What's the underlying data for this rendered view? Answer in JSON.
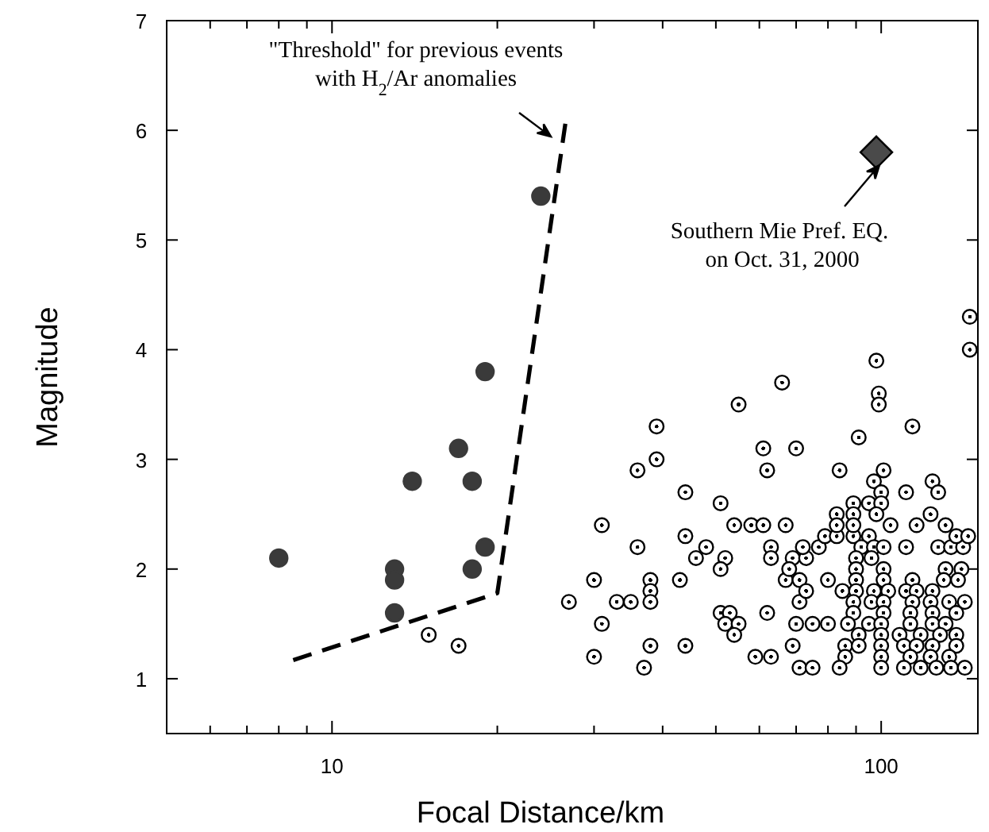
{
  "chart_data": {
    "type": "scatter",
    "xlabel": "Focal Distance/km",
    "ylabel": "Magnitude",
    "log": "x",
    "xlim": [
      5,
      150
    ],
    "ylim": [
      0.5,
      7
    ],
    "xticks": [
      {
        "value": 5,
        "label": null
      },
      {
        "value": 6,
        "label": null
      },
      {
        "value": 7,
        "label": null
      },
      {
        "value": 8,
        "label": null
      },
      {
        "value": 9,
        "label": null
      },
      10,
      {
        "value": 20,
        "label": null
      },
      {
        "value": 30,
        "label": null
      },
      {
        "value": 40,
        "label": null
      },
      {
        "value": 50,
        "label": null
      },
      {
        "value": 60,
        "label": null
      },
      {
        "value": 70,
        "label": null
      },
      {
        "value": 80,
        "label": null
      },
      {
        "value": 90,
        "label": null
      },
      100
    ],
    "yticks": [
      1,
      2,
      3,
      4,
      5,
      6,
      7
    ],
    "annotations": [
      "\"Threshold\" for previous events\nwith H$_{2}$/Ar anomalies",
      "Southern Mie Pref. EQ.\n on Oct. 31, 2000"
    ],
    "series": [
      {
        "type": "scatter",
        "marker": "circle",
        "color": "#000000",
        "x": [
          98,
          66,
          55,
          99,
          99,
          39,
          114,
          145,
          145,
          39,
          36,
          61,
          70,
          62,
          91,
          84,
          101,
          44,
          51,
          97,
          100,
          111,
          124,
          127,
          89,
          95,
          100,
          31,
          44,
          36,
          54,
          58,
          61,
          67,
          48,
          46,
          52,
          51,
          63,
          63,
          30,
          38,
          38,
          38,
          43,
          27,
          33,
          35,
          31,
          51,
          53,
          52,
          55,
          54,
          62,
          70,
          75,
          80,
          38,
          44,
          30,
          37,
          59,
          63,
          69,
          71,
          75,
          71,
          69,
          73,
          67,
          71,
          73,
          68,
          80,
          72,
          77,
          79,
          83,
          89,
          95,
          83,
          83,
          89,
          89,
          98,
          104,
          116,
          123,
          131,
          92,
          97,
          101,
          111,
          127,
          134,
          141,
          137,
          144,
          90,
          96,
          90,
          101,
          131,
          140,
          90,
          101,
          114,
          130,
          138,
          85,
          90,
          97,
          103,
          111,
          116,
          124,
          89,
          96,
          101,
          114,
          123,
          133,
          142,
          89,
          101,
          113,
          124,
          137,
          87,
          95,
          100,
          113,
          124,
          131,
          91,
          100,
          108,
          118,
          128,
          137,
          86,
          91,
          100,
          110,
          116,
          124,
          137,
          86,
          100,
          113,
          123,
          133,
          84,
          100,
          110,
          118,
          126,
          134,
          142,
          15,
          17
        ],
        "values": [
          3.9,
          3.7,
          3.5,
          3.6,
          3.5,
          3.3,
          3.3,
          4.3,
          4.0,
          3.0,
          2.9,
          3.1,
          3.1,
          2.9,
          3.2,
          2.9,
          2.9,
          2.7,
          2.6,
          2.8,
          2.7,
          2.7,
          2.8,
          2.7,
          2.6,
          2.6,
          2.6,
          2.4,
          2.3,
          2.2,
          2.4,
          2.4,
          2.4,
          2.4,
          2.2,
          2.1,
          2.1,
          2.0,
          2.2,
          2.1,
          1.9,
          1.9,
          1.8,
          1.7,
          1.9,
          1.7,
          1.7,
          1.7,
          1.5,
          1.6,
          1.6,
          1.5,
          1.5,
          1.4,
          1.6,
          1.5,
          1.5,
          1.5,
          1.3,
          1.3,
          1.2,
          1.1,
          1.2,
          1.2,
          1.3,
          1.1,
          1.1,
          1.7,
          2.1,
          2.1,
          1.9,
          1.9,
          1.8,
          2.0,
          1.9,
          2.2,
          2.2,
          2.3,
          2.3,
          2.3,
          2.3,
          2.5,
          2.4,
          2.5,
          2.4,
          2.5,
          2.4,
          2.4,
          2.5,
          2.4,
          2.2,
          2.2,
          2.2,
          2.2,
          2.2,
          2.2,
          2.2,
          2.3,
          2.3,
          2.1,
          2.1,
          2.0,
          2.0,
          2.0,
          2.0,
          1.9,
          1.9,
          1.9,
          1.9,
          1.9,
          1.8,
          1.8,
          1.8,
          1.8,
          1.8,
          1.8,
          1.8,
          1.7,
          1.7,
          1.7,
          1.7,
          1.7,
          1.7,
          1.7,
          1.6,
          1.6,
          1.6,
          1.6,
          1.6,
          1.5,
          1.5,
          1.5,
          1.5,
          1.5,
          1.5,
          1.4,
          1.4,
          1.4,
          1.4,
          1.4,
          1.4,
          1.3,
          1.3,
          1.3,
          1.3,
          1.3,
          1.3,
          1.3,
          1.2,
          1.2,
          1.2,
          1.2,
          1.2,
          1.1,
          1.1,
          1.1,
          1.1,
          1.1,
          1.1,
          1.1,
          1.4,
          1.3
        ]
      },
      {
        "marker": "circle",
        "color": "#3a3a3a",
        "x": [
          8,
          13,
          13,
          13,
          14,
          17,
          18,
          19,
          18,
          19,
          24
        ],
        "values": [
          2.1,
          2.0,
          1.9,
          1.6,
          2.8,
          3.1,
          2.8,
          3.8,
          2.0,
          2.2,
          5.4
        ]
      },
      {
        "marker": "diamond",
        "color": "#4a4a4a",
        "x": [
          98
        ],
        "values": [
          5.8
        ]
      },
      {
        "type": "line",
        "line_style": "dashed",
        "color": "#000000",
        "marker": "none",
        "x": [
          8.5,
          20,
          26.6
        ],
        "values": [
          1.17,
          1.78,
          6.06
        ]
      }
    ]
  }
}
